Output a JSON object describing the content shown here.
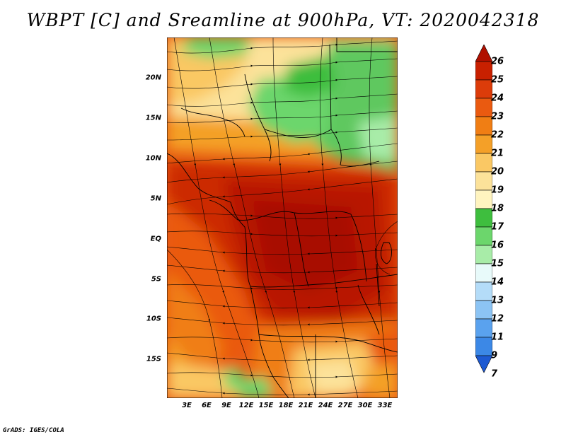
{
  "title": "WBPT [C] and Sreamline at 900hPa, VT: 2020042318",
  "credit": "GrADS: IGES/COLA",
  "map": {
    "lat_range": [
      -20,
      24.5
    ],
    "lon_range": [
      0,
      35
    ],
    "lat_labels": [
      {
        "text": "20N",
        "lat": 20
      },
      {
        "text": "15N",
        "lat": 15
      },
      {
        "text": "10N",
        "lat": 10
      },
      {
        "text": "5N",
        "lat": 5
      },
      {
        "text": "EQ",
        "lat": 0
      },
      {
        "text": "5S",
        "lat": -5
      },
      {
        "text": "10S",
        "lat": -10
      },
      {
        "text": "15S",
        "lat": -15
      }
    ],
    "lon_labels": [
      {
        "text": "3E",
        "lon": 3
      },
      {
        "text": "6E",
        "lon": 6
      },
      {
        "text": "9E",
        "lon": 9
      },
      {
        "text": "12E",
        "lon": 12
      },
      {
        "text": "15E",
        "lon": 15
      },
      {
        "text": "18E",
        "lon": 18
      },
      {
        "text": "21E",
        "lon": 21
      },
      {
        "text": "24E",
        "lon": 24
      },
      {
        "text": "27E",
        "lon": 27
      },
      {
        "text": "30E",
        "lon": 30
      },
      {
        "text": "33E",
        "lon": 33
      }
    ]
  },
  "colorbar": {
    "levels": [
      "26",
      "25",
      "24",
      "23",
      "22",
      "21",
      "20",
      "19",
      "18",
      "17",
      "16",
      "15",
      "14",
      "13",
      "12",
      "11",
      "9",
      "7"
    ],
    "colors": [
      "#b01000",
      "#c82000",
      "#dc3c0a",
      "#ea5a10",
      "#f07e14",
      "#f4a028",
      "#fac864",
      "#fce29a",
      "#fff4c0",
      "#3ebe3e",
      "#6cd66c",
      "#a8eca8",
      "#e8fafa",
      "#b4dcf8",
      "#8cc4f4",
      "#5aa2ee",
      "#3c88e6",
      "#1e5ad2"
    ]
  }
}
